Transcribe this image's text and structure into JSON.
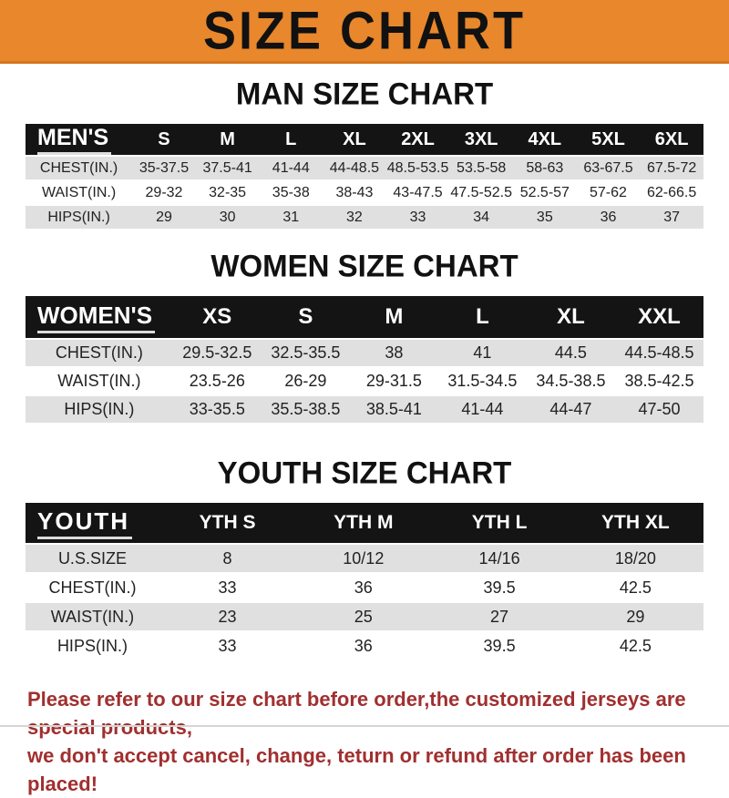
{
  "theme": {
    "banner_bg": "#E8872B",
    "banner_edge": "#D4761F",
    "header_bar_bg": "#141414",
    "row_gray": "#E0E0E0",
    "footer_red": "#A12F2F"
  },
  "banner": {
    "title": "SIZE CHART"
  },
  "sections": [
    {
      "heading": "MAN SIZE CHART",
      "table": {
        "label": "MEN'S",
        "columns": [
          "S",
          "M",
          "L",
          "XL",
          "2XL",
          "3XL",
          "4XL",
          "5XL",
          "6XL"
        ],
        "rows": [
          {
            "label": "CHEST(IN.)",
            "values": [
              "35-37.5",
              "37.5-41",
              "41-44",
              "44-48.5",
              "48.5-53.5",
              "53.5-58",
              "58-63",
              "63-67.5",
              "67.5-72"
            ]
          },
          {
            "label": "WAIST(IN.)",
            "values": [
              "29-32",
              "32-35",
              "35-38",
              "38-43",
              "43-47.5",
              "47.5-52.5",
              "52.5-57",
              "57-62",
              "62-66.5"
            ]
          },
          {
            "label": "HIPS(IN.)",
            "values": [
              "29",
              "30",
              "31",
              "32",
              "33",
              "34",
              "35",
              "36",
              "37"
            ]
          }
        ]
      }
    },
    {
      "heading": "WOMEN SIZE CHART",
      "table": {
        "label": "WOMEN'S",
        "columns": [
          "XS",
          "S",
          "M",
          "L",
          "XL",
          "XXL"
        ],
        "rows": [
          {
            "label": "CHEST(IN.)",
            "values": [
              "29.5-32.5",
              "32.5-35.5",
              "38",
              "41",
              "44.5",
              "44.5-48.5"
            ]
          },
          {
            "label": "WAIST(IN.)",
            "values": [
              "23.5-26",
              "26-29",
              "29-31.5",
              "31.5-34.5",
              "34.5-38.5",
              "38.5-42.5"
            ]
          },
          {
            "label": "HIPS(IN.)",
            "values": [
              "33-35.5",
              "35.5-38.5",
              "38.5-41",
              "41-44",
              "44-47",
              "47-50"
            ]
          }
        ]
      }
    },
    {
      "heading": "YOUTH SIZE CHART",
      "table": {
        "label": "YOUTH",
        "columns": [
          "YTH S",
          "YTH M",
          "YTH L",
          "YTH XL"
        ],
        "rows": [
          {
            "label": "U.S.SIZE",
            "values": [
              "8",
              "10/12",
              "14/16",
              "18/20"
            ]
          },
          {
            "label": "CHEST(IN.)",
            "values": [
              "33",
              "36",
              "39.5",
              "42.5"
            ]
          },
          {
            "label": "WAIST(IN.)",
            "values": [
              "23",
              "25",
              "27",
              "29"
            ]
          },
          {
            "label": "HIPS(IN.)",
            "values": [
              "33",
              "36",
              "39.5",
              "42.5"
            ]
          }
        ]
      }
    }
  ],
  "footer": {
    "line1": "Please refer to our size chart before order,the customized jerseys are special products,",
    "line2": "we don't accept cancel, change, teturn or refund after order has been placed!"
  }
}
